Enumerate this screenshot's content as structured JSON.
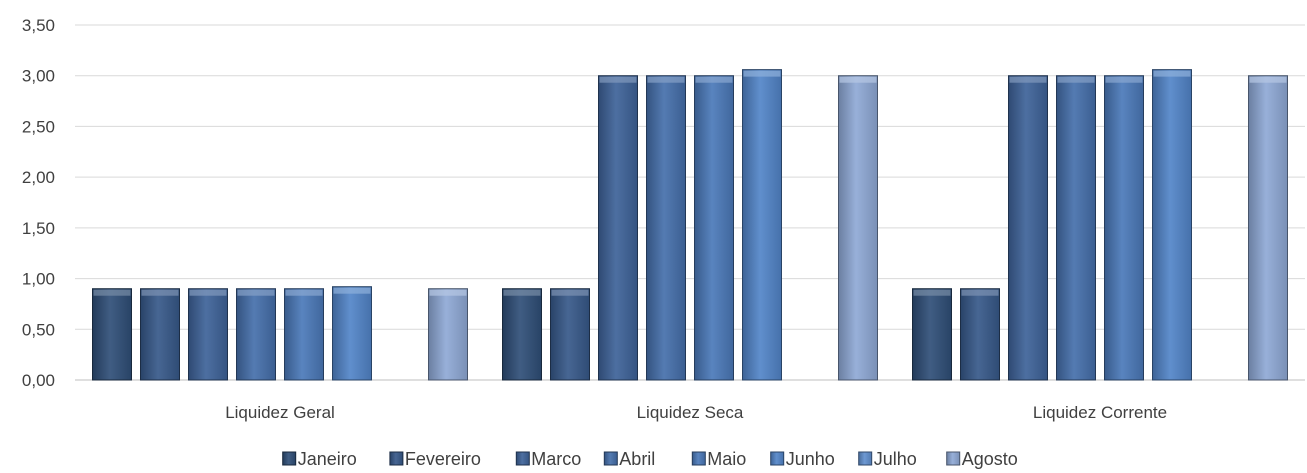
{
  "chart_data": {
    "type": "bar",
    "categories": [
      "Liquidez Geral",
      "Liquidez Seca",
      "Liquidez Corrente"
    ],
    "series": [
      {
        "name": "Janeiro",
        "values": [
          0.9,
          0.9,
          0.9
        ],
        "color": "#2f4f78"
      },
      {
        "name": "Fevereiro",
        "values": [
          0.9,
          0.9,
          0.9
        ],
        "color": "#37598a"
      },
      {
        "name": "Marco",
        "values": [
          0.9,
          3.0,
          3.0
        ],
        "color": "#3e6399"
      },
      {
        "name": "Abril",
        "values": [
          0.9,
          3.0,
          3.0
        ],
        "color": "#456fab"
      },
      {
        "name": "Maio",
        "values": [
          0.9,
          3.0,
          3.0
        ],
        "color": "#4b79b9"
      },
      {
        "name": "Junho",
        "values": [
          0.92,
          3.06,
          3.06
        ],
        "color": "#5285c9"
      },
      {
        "name": "Julho",
        "values": [
          null,
          null,
          null
        ],
        "color": "#6190cf"
      },
      {
        "name": "Agosto",
        "values": [
          0.9,
          3.0,
          3.0
        ],
        "color": "#8fa9d6"
      }
    ],
    "y_ticks": [
      "0,00",
      "0,50",
      "1,00",
      "1,50",
      "2,00",
      "2,50",
      "3,00",
      "3,50"
    ],
    "ylim": [
      0,
      3.5
    ],
    "grid": true,
    "legend_position": "bottom"
  }
}
